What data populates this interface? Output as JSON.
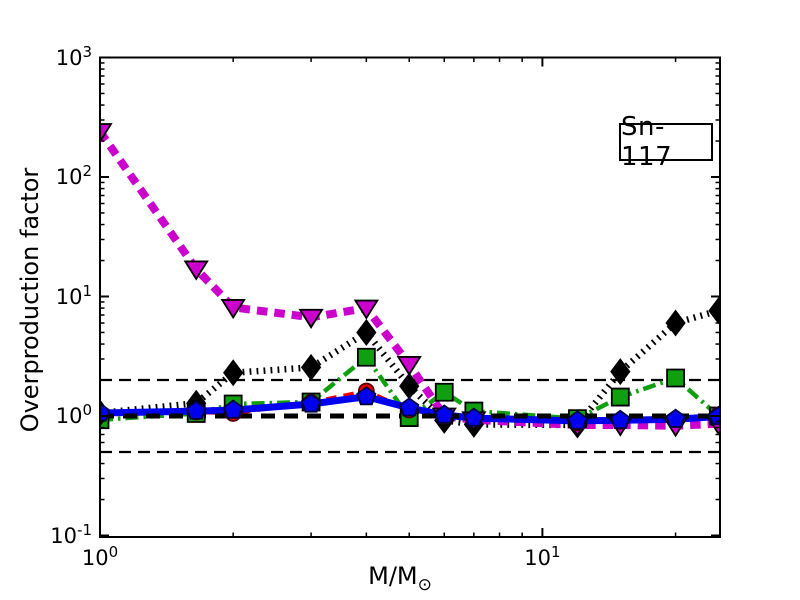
{
  "figure": {
    "background": "#ffffff"
  },
  "annotation": {
    "label": "Sn-117"
  },
  "chart_data": {
    "type": "line",
    "title": "Sn-117",
    "ylabel": "Overproduction factor",
    "xlabel_main": "M/M",
    "xlabel_sub": "⊙",
    "xscale": "log",
    "yscale": "log",
    "xlim": [
      1,
      25.2
    ],
    "ylim": [
      0.097,
      1000
    ],
    "grid": false,
    "legend": "none",
    "x": [
      1,
      1.65,
      2,
      3,
      4,
      5,
      6,
      7,
      12,
      15,
      20,
      25
    ],
    "series": [
      {
        "name": "magenta-thick-dashed-triangles",
        "color": "#cc00cc",
        "edge_color": "#000000",
        "linestyle": "dashed",
        "linewidth": 8,
        "marker": "triangle-down",
        "values": [
          240,
          17,
          8.1,
          6.7,
          8.0,
          2.7,
          1.0,
          0.93,
          0.84,
          0.84,
          0.83,
          0.86
        ]
      },
      {
        "name": "black-dotted-diamonds",
        "color": "#000000",
        "edge_color": "#000000",
        "linestyle": "dotted",
        "linewidth": 6.5,
        "marker": "diamond",
        "values": [
          1.06,
          1.28,
          2.3,
          2.55,
          5.0,
          1.78,
          0.92,
          0.85,
          0.84,
          2.35,
          6.0,
          7.6
        ]
      },
      {
        "name": "green-dashdot-squares",
        "color": "#0f9f0f",
        "edge_color": "#000000",
        "linestyle": "dashdot",
        "linewidth": 4.5,
        "marker": "square",
        "values": [
          0.93,
          1.05,
          1.26,
          1.31,
          3.1,
          0.97,
          1.58,
          1.1,
          0.95,
          1.44,
          2.08,
          1.0
        ]
      },
      {
        "name": "red-dashed-circles",
        "color": "#ee0000",
        "edge_color": "#550000",
        "linestyle": "dashed",
        "linewidth": 4,
        "marker": "circle",
        "values": [
          1.03,
          1.08,
          1.05,
          1.3,
          1.62,
          1.12,
          1.0,
          0.96,
          0.88,
          0.9,
          0.93,
          1.02
        ]
      },
      {
        "name": "blue-solid-pentagons",
        "color": "#0000ee",
        "edge_color": "#000044",
        "linestyle": "solid",
        "linewidth": 7,
        "marker": "pentagon",
        "values": [
          1.06,
          1.1,
          1.12,
          1.26,
          1.45,
          1.17,
          1.02,
          0.96,
          0.91,
          0.92,
          0.94,
          0.99
        ]
      }
    ],
    "reference_lines": [
      {
        "value": 2,
        "style": "dashed",
        "bold": false,
        "color": "#000000"
      },
      {
        "value": 1,
        "style": "dashed",
        "bold": true,
        "color": "#000000"
      },
      {
        "value": 0.5,
        "style": "dashed",
        "bold": false,
        "color": "#000000"
      }
    ],
    "yaxis": {
      "ticks": [
        {
          "base": "10",
          "exp": "3",
          "value": 1000
        },
        {
          "base": "10",
          "exp": "2",
          "value": 100
        },
        {
          "base": "10",
          "exp": "1",
          "value": 10
        },
        {
          "base": "10",
          "exp": "0",
          "value": 1
        },
        {
          "base": "10",
          "exp": "-1",
          "value": 0.1
        }
      ]
    },
    "xaxis": {
      "ticks": [
        {
          "base": "10",
          "exp": "0",
          "value": 1
        },
        {
          "base": "10",
          "exp": "1",
          "value": 10
        }
      ]
    }
  }
}
